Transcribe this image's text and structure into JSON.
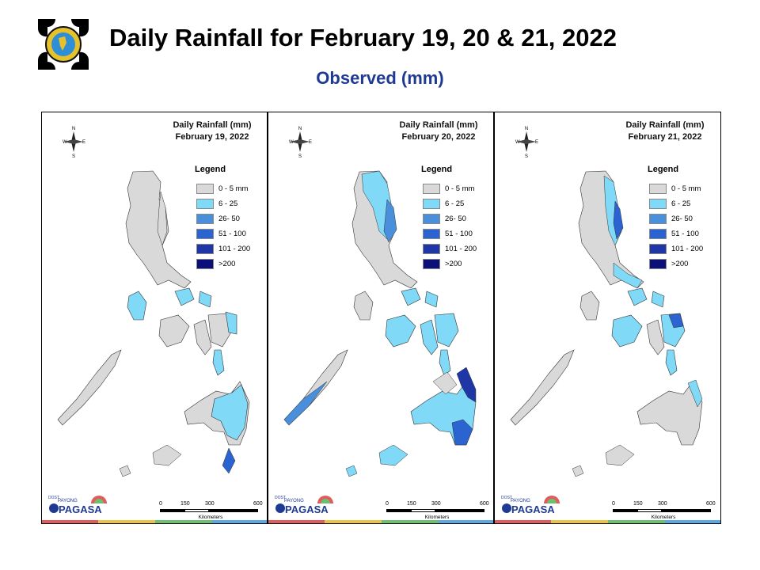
{
  "header": {
    "title": "Daily Rainfall for February 19, 20 & 21, 2022",
    "subtitle": "Observed (mm)"
  },
  "legend": {
    "title": "Legend",
    "items": [
      {
        "label": "0 - 5 mm",
        "color": "#d9d9d9"
      },
      {
        "label": "6 - 25",
        "color": "#7fd9f7"
      },
      {
        "label": "26- 50",
        "color": "#4a8fdc"
      },
      {
        "label": "51 - 100",
        "color": "#2b63d1"
      },
      {
        "label": "101 - 200",
        "color": "#1f37a6"
      },
      {
        "label": ">200",
        "color": "#0a0f7a"
      }
    ]
  },
  "panels": [
    {
      "title_line1": "Daily Rainfall (mm)",
      "title_line2": "February 19, 2022"
    },
    {
      "title_line1": "Daily Rainfall (mm)",
      "title_line2": "February 20, 2022"
    },
    {
      "title_line1": "Daily Rainfall (mm)",
      "title_line2": "February 21, 2022"
    }
  ],
  "scale": {
    "ticks": [
      "0",
      "150",
      "300",
      "600"
    ],
    "units": "Kilometers"
  },
  "compass": {
    "n": "N",
    "s": "S",
    "e": "E",
    "w": "W"
  },
  "brand": {
    "name": "PAGASA",
    "small": "DOST",
    "tag": "PAYONG"
  },
  "strip_colors": [
    "#e05c5c",
    "#e8c547",
    "#6fbf73",
    "#5aa9e0"
  ]
}
